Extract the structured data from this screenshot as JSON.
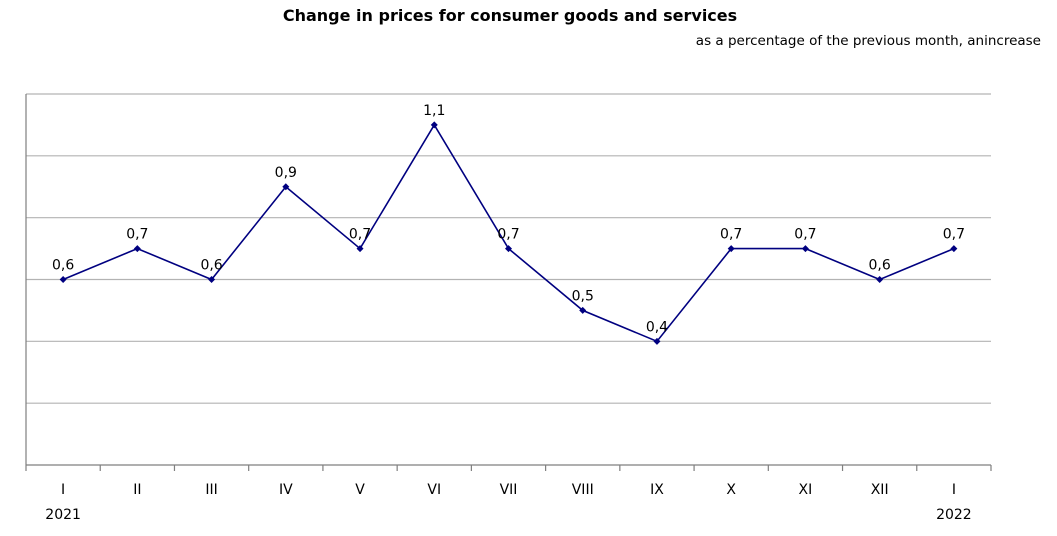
{
  "chart_data": {
    "type": "line",
    "title": "Change in prices for consumer goods and services",
    "subtitle": "as a percentage of the previous month, anincrease",
    "categories": [
      "I",
      "II",
      "III",
      "IV",
      "V",
      "VI",
      "VII",
      "VIII",
      "IX",
      "X",
      "XI",
      "XII",
      "I"
    ],
    "year_labels": [
      {
        "index": 0,
        "label": "2021"
      },
      {
        "index": 12,
        "label": "2022"
      }
    ],
    "series": [
      {
        "values": [
          0.6,
          0.7,
          0.6,
          0.9,
          0.7,
          1.1,
          0.7,
          0.5,
          0.4,
          0.7,
          0.7,
          0.6,
          0.7
        ],
        "labels": [
          "0,6",
          "0,7",
          "0,6",
          "0,9",
          "0,7",
          "1,1",
          "0,7",
          "0,5",
          "0,4",
          "0,7",
          "0,7",
          "0,6",
          "0,7"
        ],
        "color": "#000080"
      }
    ],
    "ylim": [
      0.0,
      1.2
    ],
    "grid": true,
    "y_tick_labels_shown": false,
    "xlabel": "",
    "ylabel": ""
  }
}
